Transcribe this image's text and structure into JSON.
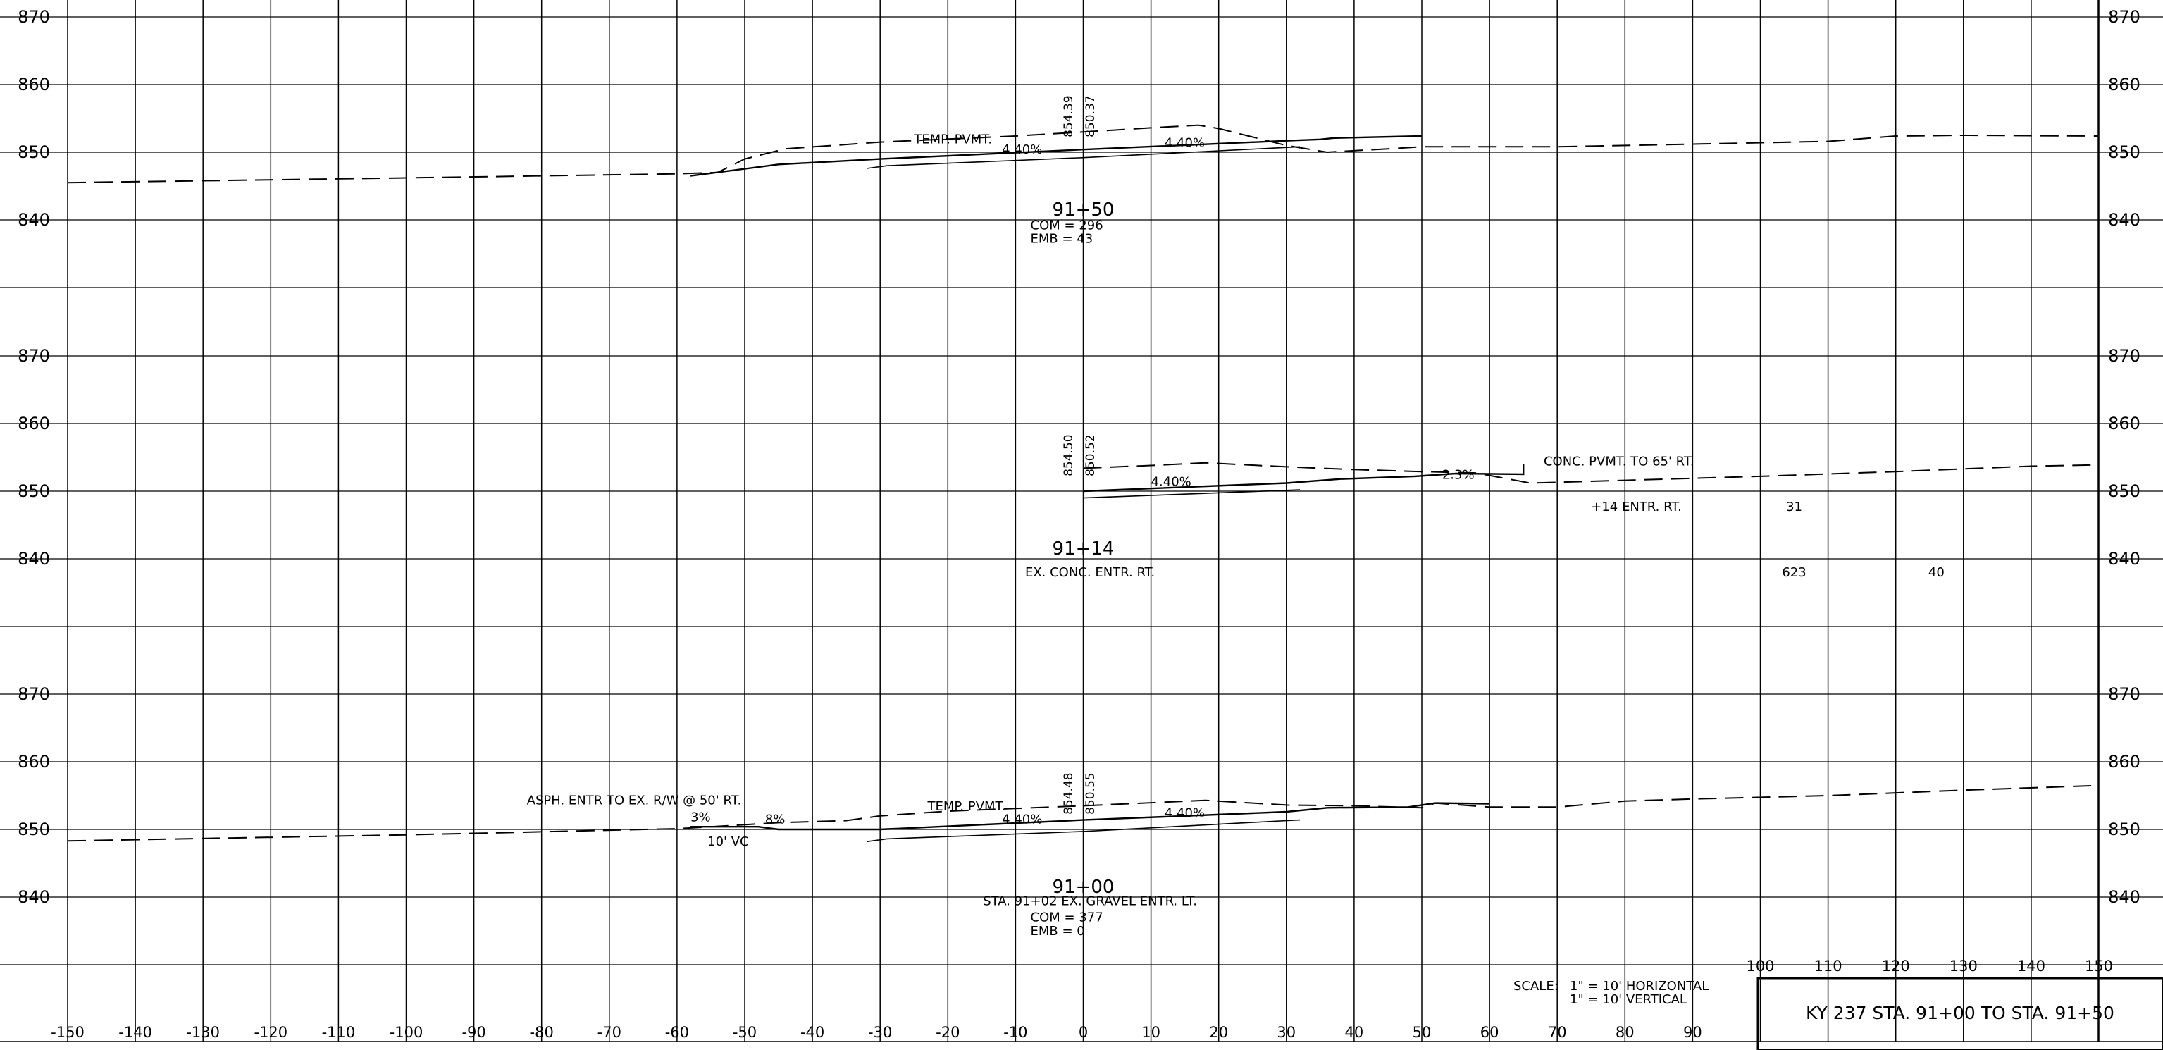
{
  "grid": {
    "x_values": [
      -150,
      -140,
      -130,
      -120,
      -110,
      -100,
      -90,
      -80,
      -70,
      -60,
      -50,
      -40,
      -30,
      -20,
      -10,
      0,
      10,
      20,
      30,
      40,
      50,
      60,
      70,
      80,
      90,
      100,
      110,
      120,
      130,
      140,
      150
    ],
    "bottom_tick_labels": [
      "-150",
      "-140",
      "-130",
      "-120",
      "-110",
      "-100",
      "-90",
      "-80",
      "-70",
      "-60",
      "-50",
      "-40",
      "-30",
      "-20",
      "-10",
      "0",
      "10",
      "20",
      "30",
      "40",
      "50",
      "60",
      "70",
      "80",
      "90"
    ],
    "top_tick_labels": [
      "100",
      "110",
      "120",
      "130",
      "140",
      "150"
    ],
    "elevation_labels": [
      "870",
      "860",
      "850",
      "840"
    ]
  },
  "sections": [
    {
      "station": "91+50",
      "left_elev_label": "854.39",
      "right_elev_label": "850.37",
      "notes": {
        "temp_pvmt": "TEMP. PVMT.",
        "slope_left": "4.40%",
        "slope_right": "4.40%",
        "com": "COM  =  296",
        "emb": "EMB  =  43"
      },
      "existing_ground": [
        [
          -150,
          845.5
        ],
        [
          -100,
          846.2
        ],
        [
          -60,
          846.8
        ],
        [
          -54,
          847
        ],
        [
          -50,
          849
        ],
        [
          -44,
          850.5
        ],
        [
          -30,
          851.5
        ],
        [
          -10,
          852.4
        ],
        [
          0,
          853
        ],
        [
          10,
          853.6
        ],
        [
          17,
          854
        ],
        [
          20,
          853.5
        ],
        [
          30,
          851
        ],
        [
          36,
          850
        ],
        [
          45,
          850.5
        ],
        [
          50,
          850.8
        ],
        [
          70,
          850.8
        ],
        [
          90,
          851.2
        ],
        [
          110,
          851.6
        ],
        [
          120,
          852.4
        ],
        [
          130,
          852.5
        ],
        [
          150,
          852.4
        ]
      ],
      "proposed_top": [
        [
          -58,
          846.5
        ],
        [
          -45,
          848.2
        ],
        [
          -30,
          849
        ],
        [
          0,
          850.4
        ],
        [
          30,
          851.7
        ],
        [
          35,
          851.9
        ],
        [
          37,
          852.1
        ],
        [
          50,
          852.4
        ]
      ],
      "proposed_sub": [
        [
          -32,
          847.6
        ],
        [
          -29,
          848
        ],
        [
          0,
          849.2
        ],
        [
          28,
          850.6
        ],
        [
          32,
          850.8
        ]
      ]
    },
    {
      "station": "91+14",
      "left_elev_label": "854.50",
      "right_elev_label": "850.52",
      "notes": {
        "conc_pvmt": "CONC. PVMT. TO 65' RT.",
        "slope_main": "4.40%",
        "slope_secondary": "2.3%",
        "entr_note": "+14 ENTR. RT.",
        "val_a": "31",
        "val_b": "623",
        "val_c": "40",
        "ex_entr": "EX. CONC. ENTR. RT."
      },
      "existing_ground": [
        [
          0,
          853.4
        ],
        [
          10,
          853.8
        ],
        [
          18,
          854.2
        ],
        [
          30,
          853.6
        ],
        [
          40,
          853.2
        ],
        [
          50,
          852.9
        ],
        [
          58,
          852.7
        ],
        [
          66,
          851.2
        ],
        [
          80,
          851.6
        ],
        [
          100,
          852.2
        ],
        [
          120,
          852.9
        ],
        [
          140,
          853.7
        ],
        [
          150,
          853.9
        ]
      ],
      "proposed_top": [
        [
          0,
          850
        ],
        [
          30,
          851.2
        ],
        [
          38,
          851.8
        ],
        [
          49,
          852.2
        ],
        [
          55,
          852.6
        ],
        [
          65,
          852.5
        ],
        [
          65,
          854
        ]
      ],
      "proposed_sub": [
        [
          0,
          849
        ],
        [
          32,
          850.2
        ]
      ]
    },
    {
      "station": "91+00",
      "left_elev_label": "854.48",
      "right_elev_label": "850.55",
      "notes": {
        "asph_entr": "ASPH. ENTR TO EX. R/W @ 50' RT.",
        "slope_3": "3%",
        "slope_8": "8%",
        "ditch": "10' VC",
        "temp_pvmt": "TEMP. PVMT.",
        "slope_left": "4.40%",
        "slope_right": "4.40%",
        "gravel_entr": "STA. 91+02 EX. GRAVEL ENTR. LT.",
        "com": "COM  =  377",
        "emb": "EMB  =  0"
      },
      "existing_ground": [
        [
          -150,
          848.3
        ],
        [
          -100,
          849.2
        ],
        [
          -60,
          850.1
        ],
        [
          -55,
          850.4
        ],
        [
          -45,
          851
        ],
        [
          -35,
          851.3
        ],
        [
          -30,
          852
        ],
        [
          -20,
          852.7
        ],
        [
          0,
          853.5
        ],
        [
          18,
          854.3
        ],
        [
          30,
          853.6
        ],
        [
          40,
          853.5
        ],
        [
          50,
          853.2
        ],
        [
          52,
          853.9
        ],
        [
          60,
          853.3
        ],
        [
          70,
          853.3
        ],
        [
          80,
          854.2
        ],
        [
          90,
          854.5
        ],
        [
          110,
          855
        ],
        [
          130,
          855.8
        ],
        [
          150,
          856.5
        ]
      ],
      "proposed_top": [
        [
          -58,
          850.4
        ],
        [
          -52,
          850.4
        ],
        [
          -48,
          850.4
        ],
        [
          -45,
          850
        ],
        [
          -30,
          850
        ],
        [
          0,
          851.4
        ],
        [
          30,
          852.6
        ],
        [
          36,
          853.2
        ],
        [
          48,
          853.3
        ],
        [
          52,
          853.9
        ],
        [
          60,
          853.8
        ]
      ],
      "proposed_sub": [
        [
          -32,
          848.2
        ],
        [
          -29,
          848.6
        ],
        [
          0,
          849.7
        ],
        [
          28,
          851.2
        ],
        [
          32,
          851.4
        ]
      ]
    }
  ],
  "scale": {
    "prefix": "SCALE:",
    "horizontal": "1\" = 10' HORIZONTAL",
    "vertical": "1\" = 10' VERTICAL"
  },
  "title_block": {
    "text": "KY 237 STA. 91+00 TO STA. 91+50"
  }
}
